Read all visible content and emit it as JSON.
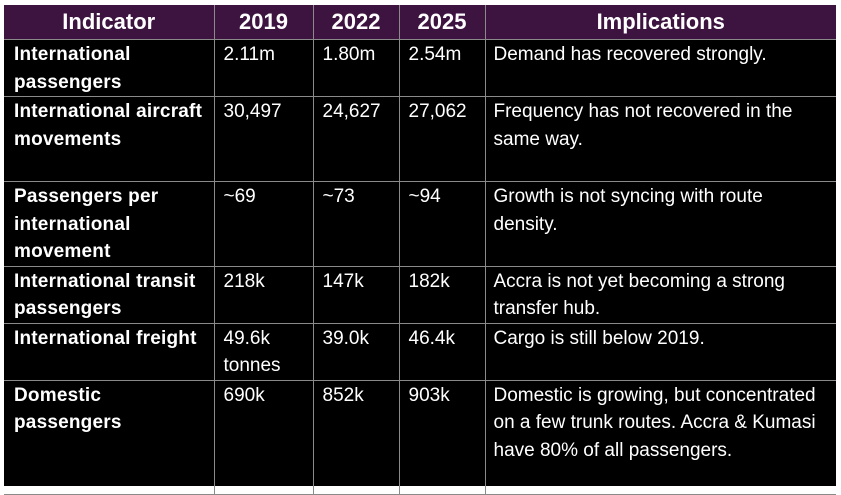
{
  "headers": {
    "indicator": "Indicator",
    "y2019": "2019",
    "y2022": "2022",
    "y2025": "2025",
    "implications": "Implications"
  },
  "rows": [
    {
      "indicator": "International passengers",
      "y2019": "2.11m",
      "y2022": "1.80m",
      "y2025": "2.54m",
      "implications": "Demand has recovered strongly."
    },
    {
      "indicator": "International aircraft movements",
      "y2019": "30,497",
      "y2022": "24,627",
      "y2025": "27,062",
      "implications": "Frequency has not recovered in the same way."
    },
    {
      "indicator": "Passengers per international movement",
      "y2019": "~69",
      "y2022": "~73",
      "y2025": "~94",
      "implications": "Growth is not syncing with route density."
    },
    {
      "indicator": "International transit passengers",
      "y2019": "218k",
      "y2022": "147k",
      "y2025": "182k",
      "implications": "Accra is not yet becoming a strong transfer hub."
    },
    {
      "indicator": "International freight",
      "y2019": "49.6k tonnes",
      "y2022": "39.0k",
      "y2025": "46.4k",
      "implications": "Cargo is still below 2019."
    },
    {
      "indicator": "Domestic passengers",
      "y2019": "690k",
      "y2022": "852k",
      "y2025": "903k",
      "implications": "Domestic is growing, but concentrated on a few trunk routes. Accra & Kumasi have 80% of all passengers."
    }
  ],
  "colors": {
    "header_background": "#3d1340",
    "table_background": "#000000",
    "text": "#ffffff",
    "grid_lines": "#8a8a8a"
  }
}
